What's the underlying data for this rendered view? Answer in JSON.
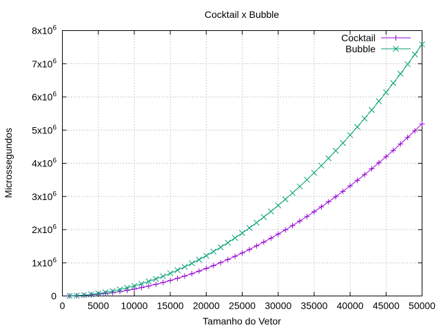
{
  "chart_data": {
    "type": "line",
    "title": "Cocktail x Bubble",
    "xlabel": "Tamanho do Vetor",
    "ylabel": "Microssegundos",
    "xlim": [
      0,
      50000
    ],
    "ylim": [
      0,
      8000000
    ],
    "grid": true,
    "legend_position": "top-right",
    "x_ticks": [
      {
        "value": 0,
        "label": "0"
      },
      {
        "value": 5000,
        "label": "5000"
      },
      {
        "value": 10000,
        "label": "10000"
      },
      {
        "value": 15000,
        "label": "15000"
      },
      {
        "value": 20000,
        "label": "20000"
      },
      {
        "value": 25000,
        "label": "25000"
      },
      {
        "value": 30000,
        "label": "30000"
      },
      {
        "value": 35000,
        "label": "35000"
      },
      {
        "value": 40000,
        "label": "40000"
      },
      {
        "value": 45000,
        "label": "45000"
      },
      {
        "value": 50000,
        "label": "50000"
      }
    ],
    "y_ticks": [
      {
        "value": 0,
        "label": "0",
        "mantissa": "0",
        "exponent": ""
      },
      {
        "value": 1000000,
        "label": "1x10^6",
        "mantissa": "1x10",
        "exponent": "6"
      },
      {
        "value": 2000000,
        "label": "2x10^6",
        "mantissa": "2x10",
        "exponent": "6"
      },
      {
        "value": 3000000,
        "label": "3x10^6",
        "mantissa": "3x10",
        "exponent": "6"
      },
      {
        "value": 4000000,
        "label": "4x10^6",
        "mantissa": "4x10",
        "exponent": "6"
      },
      {
        "value": 5000000,
        "label": "5x10^6",
        "mantissa": "5x10",
        "exponent": "6"
      },
      {
        "value": 6000000,
        "label": "6x10^6",
        "mantissa": "6x10",
        "exponent": "6"
      },
      {
        "value": 7000000,
        "label": "7x10^6",
        "mantissa": "7x10",
        "exponent": "6"
      },
      {
        "value": 8000000,
        "label": "8x10^6",
        "mantissa": "8x10",
        "exponent": "6"
      }
    ],
    "x": [
      1000,
      2000,
      3000,
      4000,
      5000,
      6000,
      7000,
      8000,
      9000,
      10000,
      11000,
      12000,
      13000,
      14000,
      15000,
      16000,
      17000,
      18000,
      19000,
      20000,
      21000,
      22000,
      23000,
      24000,
      25000,
      26000,
      27000,
      28000,
      29000,
      30000,
      31000,
      32000,
      33000,
      34000,
      35000,
      36000,
      37000,
      38000,
      39000,
      40000,
      41000,
      42000,
      43000,
      44000,
      45000,
      46000,
      47000,
      48000,
      49000,
      50000
    ],
    "series": [
      {
        "name": "Cocktail",
        "color": "#9400d3",
        "marker": "plus",
        "values": [
          2000,
          8000,
          19000,
          33000,
          52000,
          75000,
          102000,
          133000,
          168000,
          208000,
          251000,
          299000,
          351000,
          407000,
          467000,
          531000,
          600000,
          672000,
          749000,
          830000,
          915000,
          1004000,
          1097000,
          1195000,
          1296000,
          1402000,
          1511000,
          1625000,
          1743000,
          1866000,
          1992000,
          2123000,
          2258000,
          2396000,
          2540000,
          2687000,
          2838000,
          2994000,
          3153000,
          3318000,
          3485000,
          3658000,
          3834000,
          4015000,
          4200000,
          4389000,
          4582000,
          4780000,
          4981000,
          5188000
        ]
      },
      {
        "name": "Bubble",
        "color": "#009e73",
        "marker": "cross",
        "values": [
          3000,
          12000,
          27000,
          48000,
          76000,
          109000,
          149000,
          194000,
          246000,
          304000,
          367000,
          437000,
          513000,
          595000,
          683000,
          777000,
          877000,
          983000,
          1096000,
          1214000,
          1338000,
          1469000,
          1605000,
          1748000,
          1896000,
          2051000,
          2211000,
          2378000,
          2550000,
          2729000,
          2914000,
          3105000,
          3302000,
          3504000,
          3714000,
          3929000,
          4150000,
          4378000,
          4611000,
          4851000,
          5096000,
          5348000,
          5606000,
          5870000,
          6140000,
          6417000,
          6699000,
          6988000,
          7283000,
          7584000
        ]
      }
    ]
  }
}
